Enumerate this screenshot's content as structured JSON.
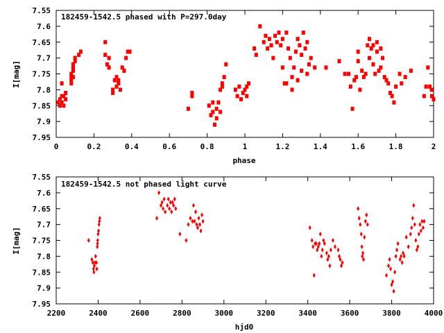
{
  "chart_data": [
    {
      "type": "scatter",
      "title": "182459-1542.5 phased with P=297.0day",
      "xlabel": "phase",
      "ylabel": "I[mag]",
      "xlim": [
        0,
        2
      ],
      "ylim": [
        7.95,
        7.55
      ],
      "inverted_y": true,
      "grid": false,
      "x_ticks": [
        "0",
        "0.2",
        "0.4",
        "0.6",
        "0.8",
        "1",
        "1.2",
        "1.4",
        "1.6",
        "1.8",
        "2"
      ],
      "y_ticks": [
        "7.55",
        "7.6",
        "7.65",
        "7.7",
        "7.75",
        "7.8",
        "7.85",
        "7.9",
        "7.95"
      ],
      "marker_color": "#ff0000",
      "series": [
        {
          "points": [
            [
              0.01,
              7.84
            ],
            [
              0.02,
              7.83
            ],
            [
              0.02,
              7.85
            ],
            [
              0.03,
              7.82
            ],
            [
              0.03,
              7.84
            ],
            [
              0.04,
              7.82
            ],
            [
              0.04,
              7.85
            ],
            [
              0.05,
              7.83
            ],
            [
              0.03,
              7.78
            ],
            [
              0.05,
              7.81
            ],
            [
              0.08,
              7.77
            ],
            [
              0.08,
              7.76
            ],
            [
              0.08,
              7.75
            ],
            [
              0.09,
              7.74
            ],
            [
              0.09,
              7.72
            ],
            [
              0.09,
              7.73
            ],
            [
              0.1,
              7.7
            ],
            [
              0.1,
              7.71
            ],
            [
              0.08,
              7.78
            ],
            [
              0.09,
              7.76
            ],
            [
              0.12,
              7.69
            ],
            [
              0.13,
              7.68
            ],
            [
              0.26,
              7.65
            ],
            [
              0.26,
              7.69
            ],
            [
              0.27,
              7.72
            ],
            [
              0.28,
              7.73
            ],
            [
              0.28,
              7.7
            ],
            [
              0.3,
              7.8
            ],
            [
              0.3,
              7.81
            ],
            [
              0.31,
              7.77
            ],
            [
              0.32,
              7.79
            ],
            [
              0.32,
              7.76
            ],
            [
              0.33,
              7.78
            ],
            [
              0.34,
              7.8
            ],
            [
              0.33,
              7.77
            ],
            [
              0.35,
              7.73
            ],
            [
              0.36,
              7.74
            ],
            [
              0.37,
              7.7
            ],
            [
              0.38,
              7.68
            ],
            [
              0.39,
              7.68
            ],
            [
              0.7,
              7.86
            ],
            [
              0.72,
              7.81
            ],
            [
              0.72,
              7.82
            ],
            [
              0.81,
              7.85
            ],
            [
              0.82,
              7.88
            ],
            [
              0.83,
              7.87
            ],
            [
              0.83,
              7.84
            ],
            [
              0.84,
              7.91
            ],
            [
              0.85,
              7.89
            ],
            [
              0.85,
              7.86
            ],
            [
              0.86,
              7.84
            ],
            [
              0.87,
              7.87
            ],
            [
              0.87,
              7.8
            ],
            [
              0.88,
              7.79
            ],
            [
              0.88,
              7.78
            ],
            [
              0.89,
              7.76
            ],
            [
              0.9,
              7.72
            ],
            [
              0.95,
              7.8
            ],
            [
              0.96,
              7.82
            ],
            [
              0.97,
              7.79
            ],
            [
              0.98,
              7.83
            ],
            [
              0.99,
              7.81
            ],
            [
              1.0,
              7.8
            ],
            [
              1.01,
              7.79
            ],
            [
              1.02,
              7.78
            ],
            [
              1.01,
              7.82
            ],
            [
              1.05,
              7.67
            ],
            [
              1.06,
              7.69
            ],
            [
              1.08,
              7.6
            ],
            [
              1.1,
              7.65
            ],
            [
              1.11,
              7.63
            ],
            [
              1.12,
              7.67
            ],
            [
              1.13,
              7.64
            ],
            [
              1.14,
              7.66
            ],
            [
              1.15,
              7.7
            ],
            [
              1.16,
              7.63
            ],
            [
              1.17,
              7.65
            ],
            [
              1.18,
              7.62
            ],
            [
              1.19,
              7.66
            ],
            [
              1.2,
              7.73
            ],
            [
              1.21,
              7.78
            ],
            [
              1.2,
              7.64
            ],
            [
              1.22,
              7.62
            ],
            [
              1.23,
              7.67
            ],
            [
              1.24,
              7.7
            ],
            [
              1.25,
              7.76
            ],
            [
              1.26,
              7.73
            ],
            [
              1.27,
              7.68
            ],
            [
              1.28,
              7.64
            ],
            [
              1.29,
              7.66
            ],
            [
              1.3,
              7.69
            ],
            [
              1.31,
              7.62
            ],
            [
              1.32,
              7.67
            ],
            [
              1.33,
              7.65
            ],
            [
              1.34,
              7.72
            ],
            [
              1.35,
              7.7
            ],
            [
              1.22,
              7.78
            ],
            [
              1.25,
              7.8
            ],
            [
              1.28,
              7.77
            ],
            [
              1.3,
              7.74
            ],
            [
              1.33,
              7.75
            ],
            [
              1.37,
              7.73
            ],
            [
              1.43,
              7.73
            ],
            [
              1.5,
              7.71
            ],
            [
              1.53,
              7.75
            ],
            [
              1.55,
              7.75
            ],
            [
              1.56,
              7.79
            ],
            [
              1.57,
              7.86
            ],
            [
              1.58,
              7.77
            ],
            [
              1.59,
              7.76
            ],
            [
              1.6,
              7.71
            ],
            [
              1.6,
              7.68
            ],
            [
              1.61,
              7.8
            ],
            [
              1.62,
              7.74
            ],
            [
              1.63,
              7.76
            ],
            [
              1.64,
              7.75
            ],
            [
              1.65,
              7.66
            ],
            [
              1.66,
              7.7
            ],
            [
              1.67,
              7.67
            ],
            [
              1.68,
              7.72
            ],
            [
              1.69,
              7.75
            ],
            [
              1.7,
              7.68
            ],
            [
              1.71,
              7.74
            ],
            [
              1.72,
              7.73
            ],
            [
              1.73,
              7.7
            ],
            [
              1.74,
              7.76
            ],
            [
              1.75,
              7.77
            ],
            [
              1.66,
              7.64
            ],
            [
              1.68,
              7.66
            ],
            [
              1.7,
              7.65
            ],
            [
              1.72,
              7.67
            ],
            [
              1.76,
              7.78
            ],
            [
              1.77,
              7.81
            ],
            [
              1.78,
              7.82
            ],
            [
              1.79,
              7.84
            ],
            [
              1.8,
              7.79
            ],
            [
              1.82,
              7.75
            ],
            [
              1.83,
              7.78
            ],
            [
              1.85,
              7.76
            ],
            [
              1.88,
              7.74
            ],
            [
              1.95,
              7.82
            ],
            [
              1.96,
              7.79
            ],
            [
              1.97,
              7.73
            ],
            [
              1.98,
              7.79
            ],
            [
              1.99,
              7.82
            ],
            [
              2.0,
              7.83
            ],
            [
              1.99,
              7.8
            ]
          ]
        }
      ]
    },
    {
      "type": "scatter",
      "title": "182459-1542.5 not phased light curve",
      "xlabel": "hjd0",
      "ylabel": "I[mag]",
      "xlim": [
        2200,
        4000
      ],
      "ylim": [
        7.95,
        7.55
      ],
      "inverted_y": true,
      "grid": false,
      "x_ticks": [
        "2200",
        "2400",
        "2600",
        "2800",
        "3000",
        "3200",
        "3400",
        "3600",
        "3800",
        "4000"
      ],
      "y_ticks": [
        "7.55",
        "7.6",
        "7.65",
        "7.7",
        "7.75",
        "7.8",
        "7.85",
        "7.9",
        "7.95"
      ],
      "marker_color": "#ff0000",
      "series": [
        {
          "points": [
            [
              2355,
              7.75
            ],
            [
              2370,
              7.81
            ],
            [
              2375,
              7.82
            ],
            [
              2378,
              7.84
            ],
            [
              2380,
              7.85
            ],
            [
              2382,
              7.83
            ],
            [
              2385,
              7.82
            ],
            [
              2388,
              7.8
            ],
            [
              2392,
              7.82
            ],
            [
              2394,
              7.84
            ],
            [
              2396,
              7.77
            ],
            [
              2398,
              7.75
            ],
            [
              2400,
              7.73
            ],
            [
              2402,
              7.72
            ],
            [
              2404,
              7.7
            ],
            [
              2406,
              7.69
            ],
            [
              2408,
              7.68
            ],
            [
              2397,
              7.76
            ],
            [
              2680,
              7.68
            ],
            [
              2690,
              7.6
            ],
            [
              2700,
              7.64
            ],
            [
              2705,
              7.63
            ],
            [
              2710,
              7.65
            ],
            [
              2715,
              7.62
            ],
            [
              2720,
              7.66
            ],
            [
              2730,
              7.64
            ],
            [
              2735,
              7.62
            ],
            [
              2740,
              7.65
            ],
            [
              2745,
              7.63
            ],
            [
              2750,
              7.66
            ],
            [
              2755,
              7.63
            ],
            [
              2760,
              7.64
            ],
            [
              2765,
              7.62
            ],
            [
              2770,
              7.65
            ],
            [
              2790,
              7.73
            ],
            [
              2820,
              7.75
            ],
            [
              2830,
              7.7
            ],
            [
              2840,
              7.68
            ],
            [
              2850,
              7.69
            ],
            [
              2855,
              7.64
            ],
            [
              2860,
              7.69
            ],
            [
              2865,
              7.66
            ],
            [
              2870,
              7.7
            ],
            [
              2875,
              7.71
            ],
            [
              2880,
              7.68
            ],
            [
              2885,
              7.7
            ],
            [
              2890,
              7.72
            ],
            [
              2895,
              7.67
            ],
            [
              2900,
              7.69
            ],
            [
              3410,
              7.71
            ],
            [
              3420,
              7.75
            ],
            [
              3425,
              7.77
            ],
            [
              3430,
              7.86
            ],
            [
              3435,
              7.76
            ],
            [
              3440,
              7.76
            ],
            [
              3445,
              7.78
            ],
            [
              3450,
              7.77
            ],
            [
              3455,
              7.76
            ],
            [
              3460,
              7.73
            ],
            [
              3465,
              7.8
            ],
            [
              3470,
              7.78
            ],
            [
              3475,
              7.75
            ],
            [
              3480,
              7.76
            ],
            [
              3490,
              7.79
            ],
            [
              3495,
              7.81
            ],
            [
              3500,
              7.8
            ],
            [
              3505,
              7.83
            ],
            [
              3510,
              7.78
            ],
            [
              3520,
              7.75
            ],
            [
              3530,
              7.77
            ],
            [
              3545,
              7.78
            ],
            [
              3550,
              7.8
            ],
            [
              3555,
              7.81
            ],
            [
              3560,
              7.83
            ],
            [
              3565,
              7.82
            ],
            [
              3640,
              7.65
            ],
            [
              3645,
              7.68
            ],
            [
              3650,
              7.7
            ],
            [
              3655,
              7.73
            ],
            [
              3658,
              7.77
            ],
            [
              3660,
              7.8
            ],
            [
              3663,
              7.79
            ],
            [
              3666,
              7.81
            ],
            [
              3670,
              7.74
            ],
            [
              3675,
              7.69
            ],
            [
              3680,
              7.67
            ],
            [
              3685,
              7.7
            ],
            [
              3775,
              7.86
            ],
            [
              3785,
              7.83
            ],
            [
              3790,
              7.81
            ],
            [
              3795,
              7.84
            ],
            [
              3800,
              7.89
            ],
            [
              3805,
              7.88
            ],
            [
              3810,
              7.91
            ],
            [
              3815,
              7.85
            ],
            [
              3820,
              7.8
            ],
            [
              3825,
              7.78
            ],
            [
              3830,
              7.76
            ],
            [
              3840,
              7.81
            ],
            [
              3845,
              7.8
            ],
            [
              3850,
              7.82
            ],
            [
              3855,
              7.79
            ],
            [
              3860,
              7.8
            ],
            [
              3870,
              7.74
            ],
            [
              3880,
              7.77
            ],
            [
              3890,
              7.73
            ],
            [
              3895,
              7.71
            ],
            [
              3900,
              7.68
            ],
            [
              3905,
              7.64
            ],
            [
              3910,
              7.7
            ],
            [
              3915,
              7.75
            ],
            [
              3920,
              7.78
            ],
            [
              3925,
              7.77
            ],
            [
              3930,
              7.73
            ],
            [
              3935,
              7.7
            ],
            [
              3940,
              7.72
            ],
            [
              3945,
              7.69
            ],
            [
              3950,
              7.71
            ],
            [
              3955,
              7.69
            ]
          ]
        }
      ]
    }
  ]
}
